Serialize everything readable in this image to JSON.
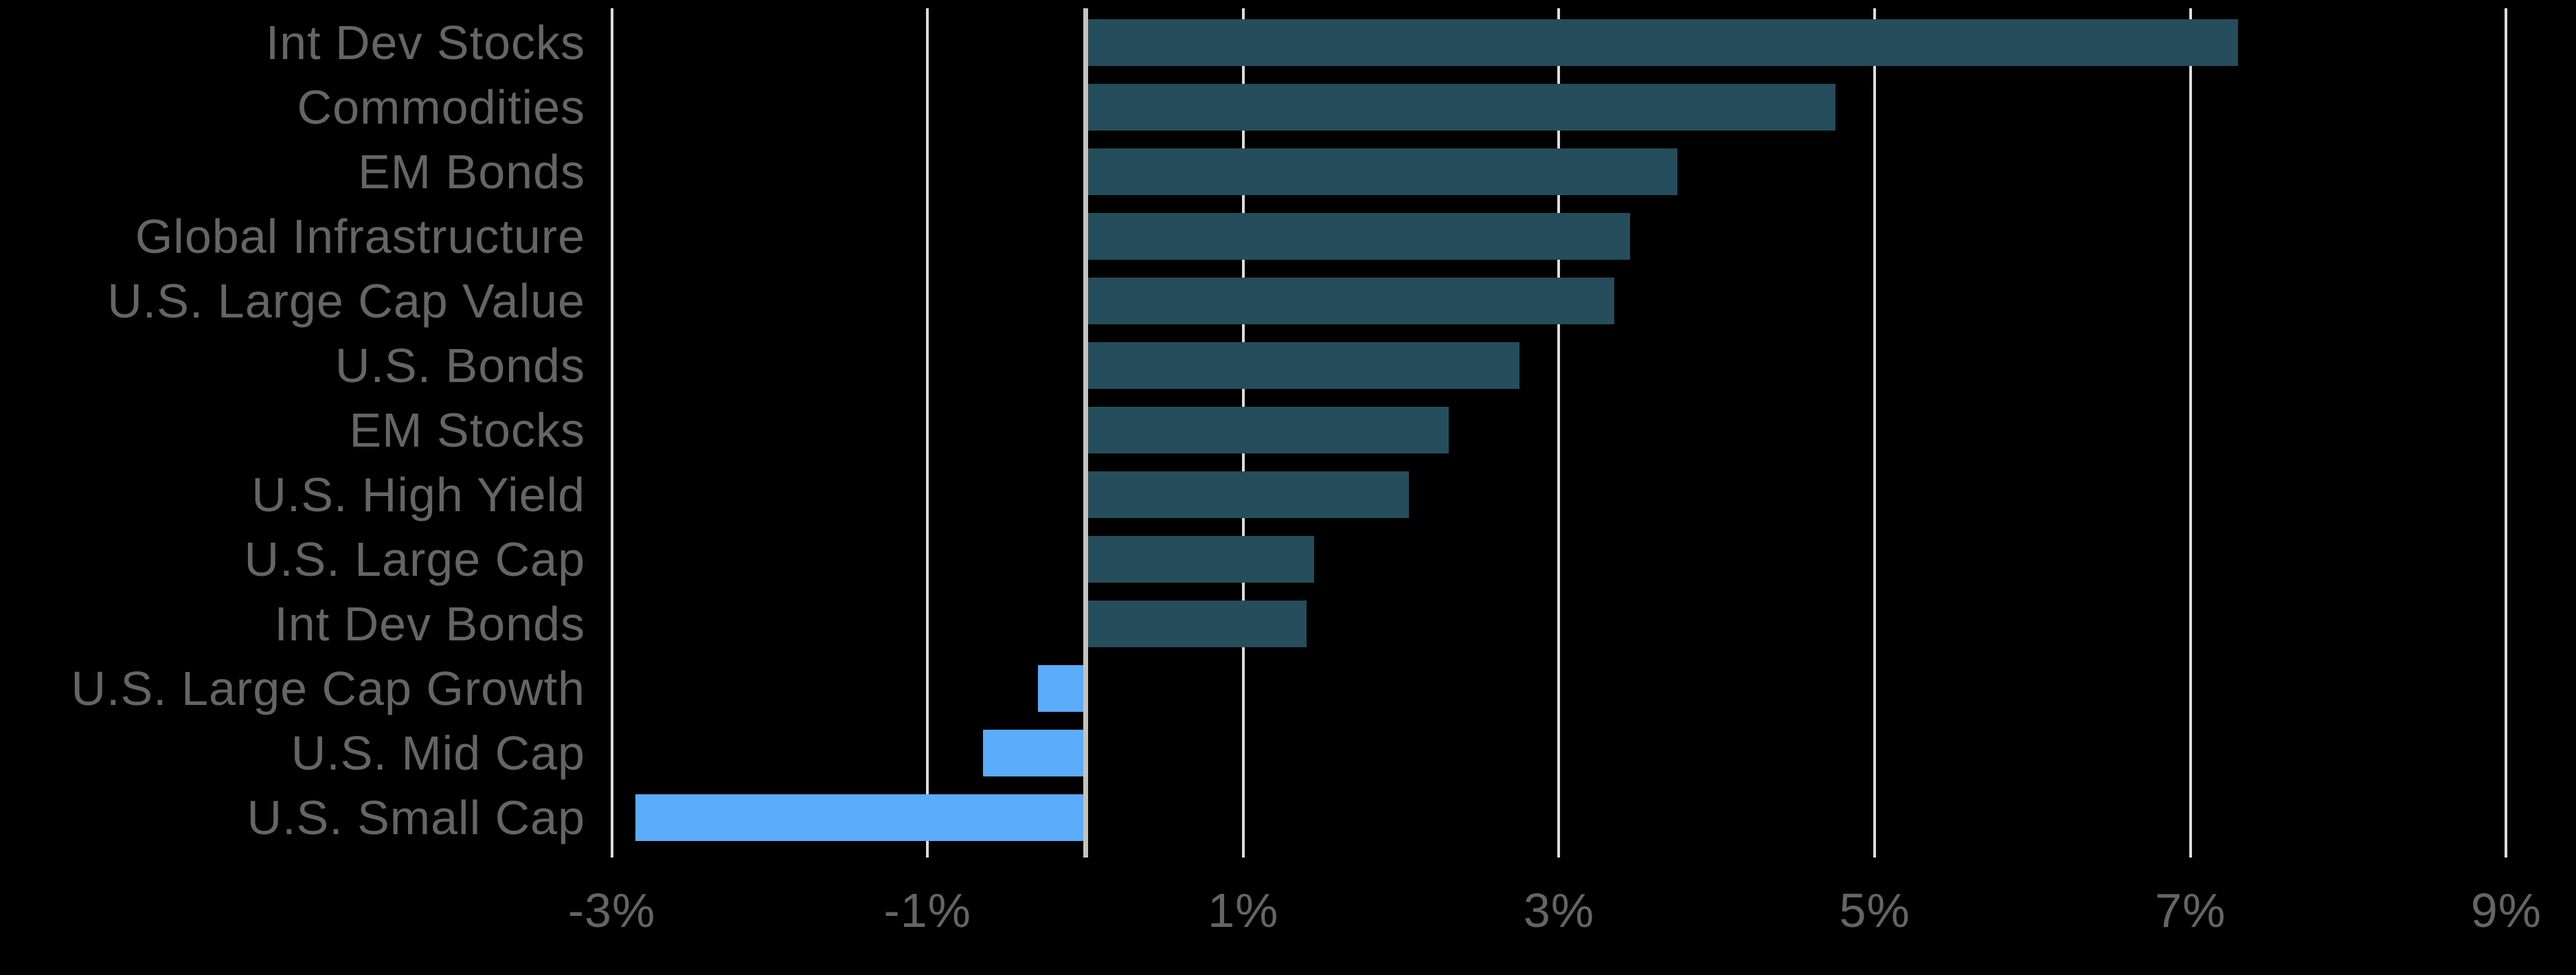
{
  "colors": {
    "background": "#000000",
    "positive_bar": "#254D5B",
    "negative_bar": "#5BACFA",
    "gridline": "#DCDCDA",
    "zero_line": "#C6C2BB",
    "label_text": "#656565"
  },
  "chart_data": {
    "type": "bar",
    "orientation": "horizontal",
    "title": "",
    "xlabel": "",
    "ylabel": "",
    "legend": "none",
    "grid": "vertical-gridlines-at-ticks",
    "x_axis": {
      "min": -3,
      "max": 9,
      "unit": "%",
      "ticks": [
        {
          "value": -3,
          "label": "-3%"
        },
        {
          "value": -1,
          "label": "-1%"
        },
        {
          "value": 1,
          "label": "1%"
        },
        {
          "value": 3,
          "label": "3%"
        },
        {
          "value": 5,
          "label": "5%"
        },
        {
          "value": 7,
          "label": "7%"
        },
        {
          "value": 9,
          "label": "9%"
        }
      ]
    },
    "categories": [
      "Int Dev Stocks",
      "Commodities",
      "EM Bonds",
      "Global Infrastructure",
      "U.S. Large Cap Value",
      "U.S. Bonds",
      "EM Stocks",
      "U.S. High Yield",
      "U.S. Large Cap",
      "Int Dev Bonds",
      "U.S. Large Cap Growth",
      "U.S. Mid Cap",
      "U.S. Small Cap"
    ],
    "values": [
      7.3,
      4.75,
      3.75,
      3.45,
      3.35,
      2.75,
      2.3,
      2.05,
      1.45,
      1.4,
      -0.3,
      -0.65,
      -2.85
    ],
    "value_color_rule": "positive values dark teal, negative values light blue"
  }
}
